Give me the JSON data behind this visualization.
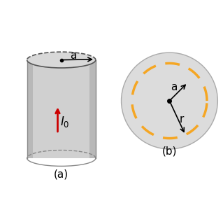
{
  "fig_width": 3.19,
  "fig_height": 3.0,
  "bg_color": "#ffffff",
  "label_a": "(a)",
  "label_b": "(b)",
  "cylinder_color_light": "#d8d8d8",
  "cylinder_color_mid": "#c0c0c0",
  "cylinder_color_dark": "#b0b0b0",
  "orange_color": "#f5a623",
  "red_color": "#cc0000",
  "arrow_color": "#000000",
  "text_a": "a",
  "text_r": "r",
  "text_I0": "$I_0$",
  "circle_bg": "#dcdcdc"
}
